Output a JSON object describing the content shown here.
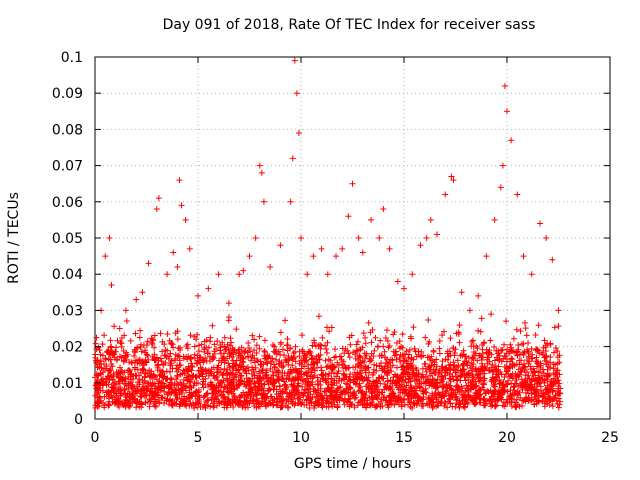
{
  "chart_data": {
    "type": "scatter",
    "title": "Day 091 of 2018, Rate Of TEC Index for receiver sass",
    "xlabel": "GPS time / hours",
    "ylabel": "ROTI / TECUs",
    "xlim": [
      0,
      25
    ],
    "ylim": [
      0,
      0.1
    ],
    "x_ticks": [
      0,
      5,
      10,
      15,
      20,
      25
    ],
    "y_ticks": [
      0,
      0.01,
      0.02,
      0.03,
      0.04,
      0.05,
      0.06,
      0.07,
      0.08,
      0.09,
      0.1
    ],
    "x_tick_labels": [
      "0",
      "5",
      "10",
      "15",
      "20",
      "25"
    ],
    "y_tick_labels": [
      "0",
      "0.01",
      "0.02",
      "0.03",
      "0.04",
      "0.05",
      "0.06",
      "0.07",
      "0.08",
      "0.09",
      "0.1"
    ],
    "grid": true,
    "marker": "plus",
    "color": "#ff0000",
    "data_x_range": [
      0,
      22.6
    ],
    "series": [
      {
        "x": [
          0.1,
          0.3,
          0.5,
          0.7,
          0.8,
          1.2,
          1.5,
          2.0,
          2.3,
          2.6,
          3.0,
          3.1,
          3.5,
          3.8,
          4.0,
          4.1,
          4.2,
          4.4,
          4.6,
          5.0,
          5.5,
          6.0,
          6.5,
          7.0,
          7.2,
          7.5,
          7.8,
          8.0,
          8.1,
          8.2,
          8.5,
          9.0,
          9.5,
          9.6,
          9.7,
          9.8,
          9.9,
          10.0,
          10.3,
          10.6,
          11.0,
          11.3,
          11.7,
          12.0,
          12.3,
          12.5,
          12.8,
          13.0,
          13.4,
          13.8,
          14.0,
          14.3,
          14.7,
          15.0,
          15.4,
          15.8,
          16.1,
          16.3,
          16.6,
          17.0,
          17.3,
          17.4,
          17.8,
          18.2,
          18.6,
          19.0,
          19.4,
          19.7,
          19.8,
          19.9,
          20.0,
          20.2,
          20.5,
          20.8,
          21.2,
          21.6,
          21.9,
          22.2,
          22.5
        ],
        "y": [
          0.012,
          0.03,
          0.045,
          0.05,
          0.037,
          0.025,
          0.03,
          0.033,
          0.035,
          0.043,
          0.058,
          0.061,
          0.04,
          0.046,
          0.042,
          0.066,
          0.059,
          0.055,
          0.047,
          0.034,
          0.036,
          0.04,
          0.032,
          0.04,
          0.041,
          0.045,
          0.05,
          0.07,
          0.068,
          0.06,
          0.042,
          0.048,
          0.06,
          0.072,
          0.099,
          0.09,
          0.079,
          0.05,
          0.04,
          0.045,
          0.047,
          0.04,
          0.045,
          0.047,
          0.056,
          0.065,
          0.05,
          0.046,
          0.055,
          0.05,
          0.058,
          0.047,
          0.038,
          0.036,
          0.04,
          0.048,
          0.05,
          0.055,
          0.051,
          0.062,
          0.067,
          0.066,
          0.035,
          0.03,
          0.034,
          0.045,
          0.055,
          0.064,
          0.07,
          0.092,
          0.085,
          0.077,
          0.062,
          0.045,
          0.04,
          0.054,
          0.05,
          0.044,
          0.03
        ]
      }
    ]
  }
}
